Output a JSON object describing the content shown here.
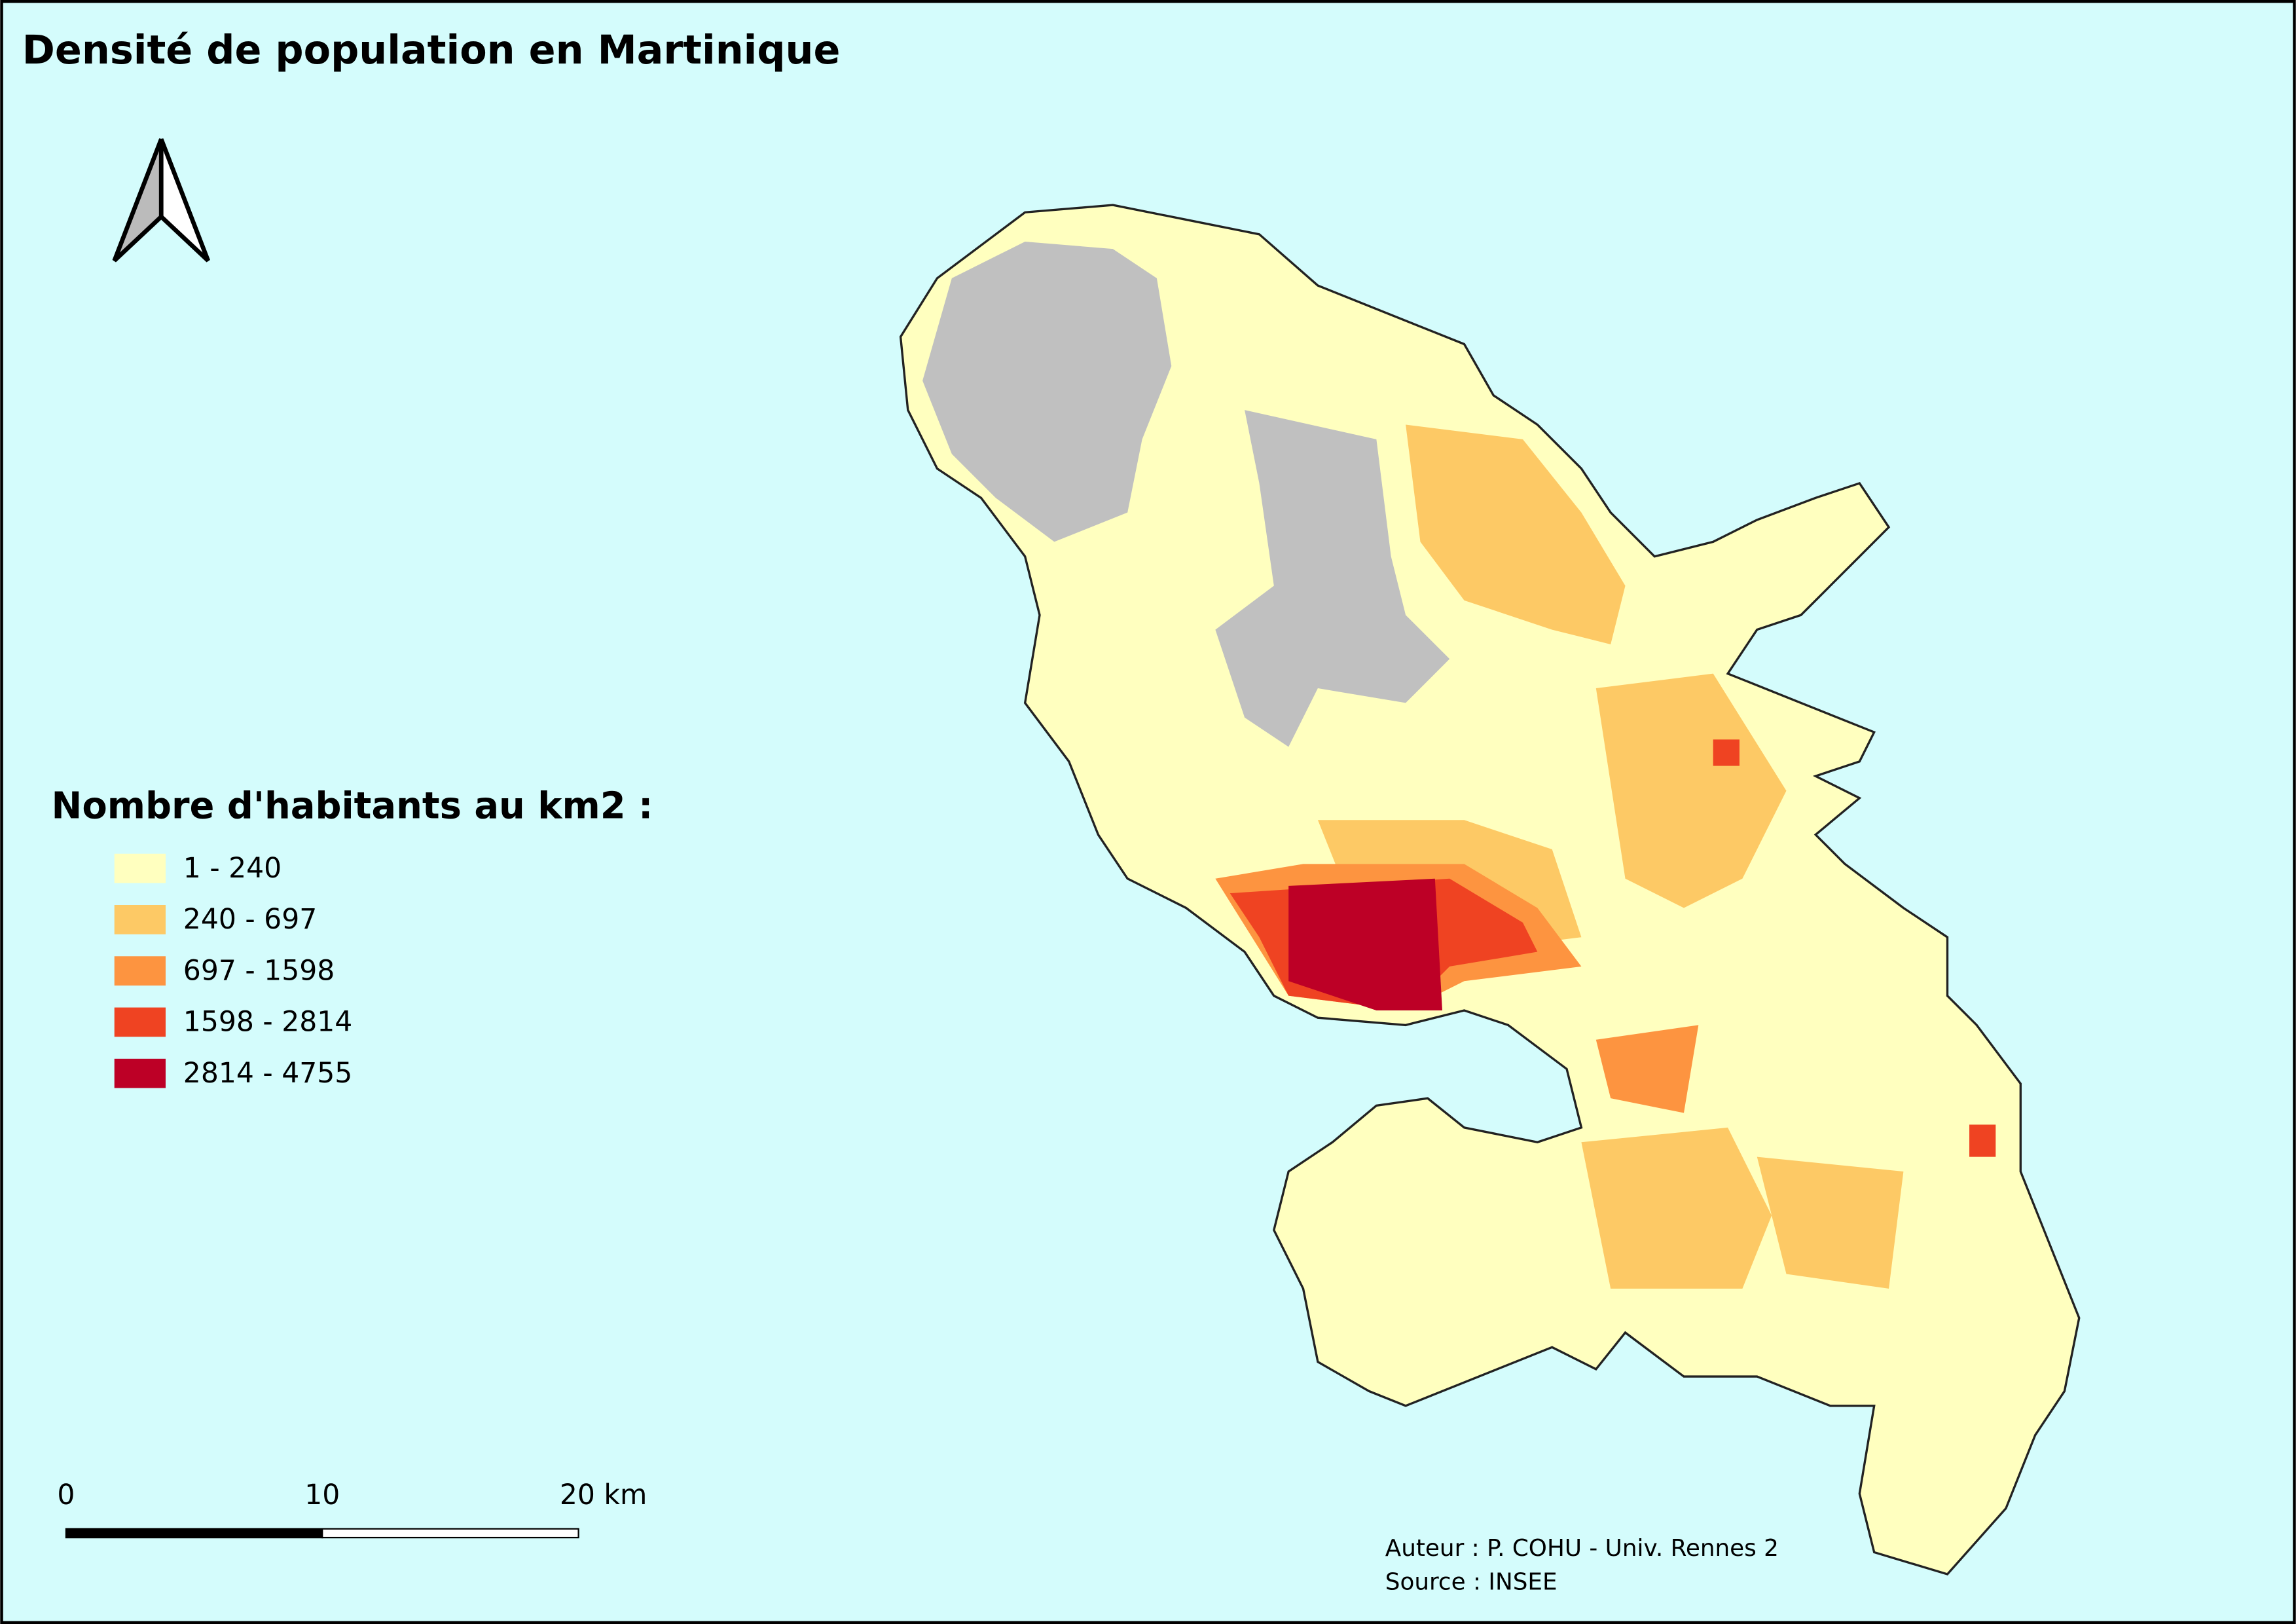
{
  "title": "Densité de population en Martinique",
  "legend": {
    "title": "Nombre d'habitants au km2 :",
    "items": [
      {
        "label": "1 - 240",
        "color": "#ffffbf"
      },
      {
        "label": "240 - 697",
        "color": "#fdc965"
      },
      {
        "label": "697 - 1598",
        "color": "#fd9440"
      },
      {
        "label": "1598 - 2814",
        "color": "#ef4322"
      },
      {
        "label": "2814 - 4755",
        "color": "#bd0026"
      }
    ]
  },
  "scale_bar": {
    "labels": [
      "0",
      "10",
      "20 km"
    ]
  },
  "credits": [
    "Auteur : P. COHU - Univ. Rennes 2",
    "Source : INSEE"
  ]
}
